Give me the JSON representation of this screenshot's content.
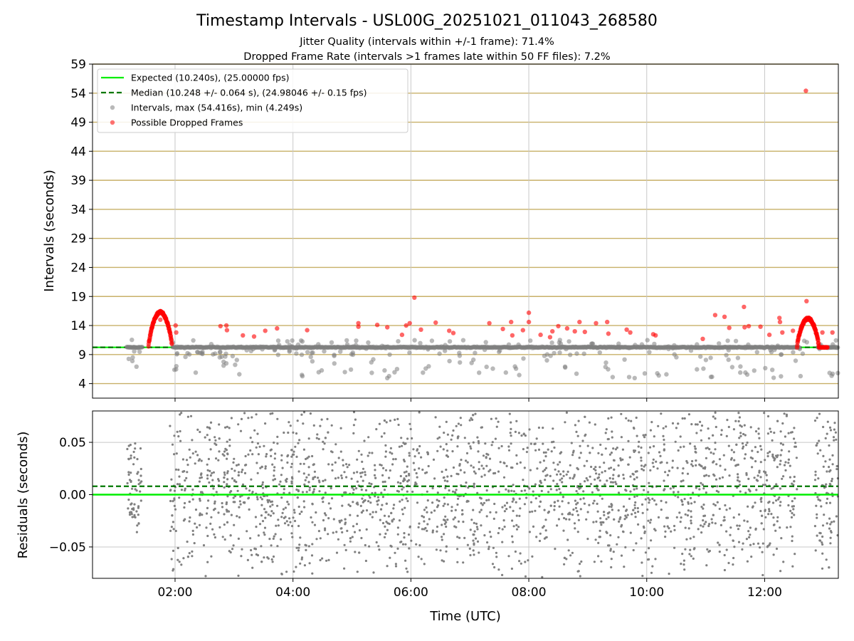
{
  "title": "Timestamp Intervals - USL00G_20251021_011043_268580",
  "subtitle_1": "Jitter Quality (intervals within +/-1 frame): 71.4%",
  "subtitle_2": "Dropped Frame Rate (intervals >1 frames late within 50 FF files): 7.2%",
  "colors": {
    "expected": "#00ee00",
    "median": "#007700",
    "intervals": "#808080",
    "dropped": "#ff0000",
    "hgrid": "#c8b068",
    "vgrid": "#c8c8c8"
  },
  "chart_data": [
    {
      "type": "scatter",
      "panel": "intervals",
      "ylabel": "Intervals (seconds)",
      "xlabel": "",
      "grid": true,
      "legend_position": "top-left",
      "xlim_hours": [
        0.6,
        13.25
      ],
      "ylim": [
        1.5,
        59
      ],
      "yticks": [
        4,
        9,
        14,
        19,
        24,
        29,
        34,
        39,
        44,
        49,
        54,
        59
      ],
      "xticks_hours": [
        2,
        4,
        6,
        8,
        10,
        12
      ],
      "xtick_labels": [
        "02:00",
        "04:00",
        "06:00",
        "08:00",
        "10:00",
        "12:00"
      ],
      "expected": {
        "value": 10.24,
        "label": "Expected (10.240s), (25.00000 fps)"
      },
      "median": {
        "value": 10.248,
        "label": "Median (10.248 +/- 0.064 s), (24.98046 +/- 0.15 fps)"
      },
      "series": [
        {
          "name": "Intervals, max (54.416s), min (4.249s)",
          "max": 54.416,
          "min": 4.249
        },
        {
          "name": "Possible Dropped Frames"
        }
      ],
      "time_range_hours": [
        1.18,
        13.25
      ],
      "dropped_frame_points": [
        [
          1.72,
          16.2
        ],
        [
          1.7,
          15.8
        ],
        [
          1.75,
          15.0
        ],
        [
          2.01,
          14.0
        ],
        [
          2.02,
          12.8
        ],
        [
          2.77,
          13.9
        ],
        [
          2.87,
          14.0
        ],
        [
          2.88,
          13.2
        ],
        [
          3.15,
          12.3
        ],
        [
          3.34,
          12.1
        ],
        [
          3.53,
          13.1
        ],
        [
          3.73,
          13.5
        ],
        [
          4.24,
          13.2
        ],
        [
          5.11,
          14.4
        ],
        [
          5.11,
          13.8
        ],
        [
          5.43,
          14.1
        ],
        [
          5.6,
          13.7
        ],
        [
          5.85,
          12.4
        ],
        [
          5.92,
          14.0
        ],
        [
          5.98,
          14.4
        ],
        [
          6.06,
          18.8
        ],
        [
          6.17,
          13.3
        ],
        [
          6.42,
          14.5
        ],
        [
          6.65,
          13.1
        ],
        [
          6.72,
          12.7
        ],
        [
          7.33,
          14.4
        ],
        [
          7.56,
          13.4
        ],
        [
          7.7,
          14.6
        ],
        [
          7.72,
          12.3
        ],
        [
          7.9,
          13.2
        ],
        [
          8.0,
          16.2
        ],
        [
          8.0,
          14.6
        ],
        [
          8.2,
          12.4
        ],
        [
          8.36,
          12.0
        ],
        [
          8.4,
          13.0
        ],
        [
          8.5,
          13.9
        ],
        [
          8.65,
          13.5
        ],
        [
          8.78,
          13.0
        ],
        [
          8.86,
          14.6
        ],
        [
          8.95,
          12.9
        ],
        [
          9.14,
          14.4
        ],
        [
          9.33,
          14.6
        ],
        [
          9.35,
          12.6
        ],
        [
          9.66,
          13.3
        ],
        [
          9.72,
          12.8
        ],
        [
          10.11,
          12.5
        ],
        [
          10.15,
          12.3
        ],
        [
          10.95,
          11.7
        ],
        [
          11.16,
          15.8
        ],
        [
          11.32,
          15.5
        ],
        [
          11.4,
          13.6
        ],
        [
          11.65,
          17.2
        ],
        [
          11.66,
          13.7
        ],
        [
          11.73,
          13.9
        ],
        [
          11.93,
          13.8
        ],
        [
          12.08,
          12.4
        ],
        [
          12.25,
          15.3
        ],
        [
          12.26,
          14.6
        ],
        [
          12.3,
          12.8
        ],
        [
          12.48,
          13.1
        ],
        [
          12.62,
          13.7
        ],
        [
          12.71,
          18.2
        ],
        [
          12.7,
          54.4
        ],
        [
          12.98,
          12.8
        ],
        [
          13.15,
          12.8
        ]
      ]
    },
    {
      "type": "scatter",
      "panel": "residuals",
      "ylabel": "Residuals (seconds)",
      "xlabel": "Time (UTC)",
      "grid": true,
      "xlim_hours": [
        0.6,
        13.25
      ],
      "ylim": [
        -0.08,
        0.08
      ],
      "yticks": [
        -0.05,
        0.0,
        0.05
      ],
      "ytick_labels": [
        "−0.05",
        "0.00",
        "0.05"
      ],
      "xticks_hours": [
        2,
        4,
        6,
        8,
        10,
        12
      ],
      "xtick_labels": [
        "02:00",
        "04:00",
        "06:00",
        "08:00",
        "10:00",
        "12:00"
      ],
      "expected_residual": 0.0,
      "median_residual": 0.008,
      "residual_point_count": 2600
    }
  ]
}
